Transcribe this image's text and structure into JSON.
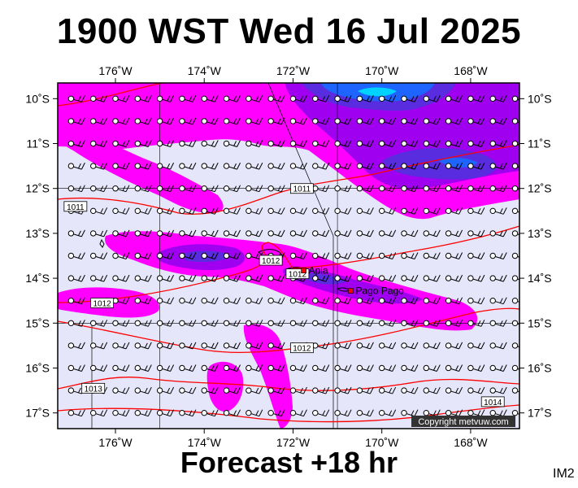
{
  "header": {
    "title": "1900 WST Wed 16 Jul 2025"
  },
  "footer": {
    "forecast": "Forecast +18 hr",
    "corner_id": "IM2"
  },
  "copyright": "Copyright metvuw.com",
  "map": {
    "lon_range": [
      -177.3,
      -166.9
    ],
    "lat_range": [
      -17.35,
      -9.65
    ],
    "lon_ticks": [
      {
        "lon": -176,
        "label": "176˚W"
      },
      {
        "lon": -174,
        "label": "174˚W"
      },
      {
        "lon": -172,
        "label": "172˚W"
      },
      {
        "lon": -170,
        "label": "170˚W"
      },
      {
        "lon": -168,
        "label": "168˚W"
      }
    ],
    "lat_ticks": [
      {
        "lat": -10,
        "label": "10˚S"
      },
      {
        "lat": -11,
        "label": "11˚S"
      },
      {
        "lat": -12,
        "label": "12˚S"
      },
      {
        "lat": -13,
        "label": "13˚S"
      },
      {
        "lat": -14,
        "label": "14˚S"
      },
      {
        "lat": -15,
        "label": "15˚S"
      },
      {
        "lat": -16,
        "label": "16˚S"
      },
      {
        "lat": -17,
        "label": "17˚S"
      }
    ],
    "cities": [
      {
        "name": "Apia",
        "lon": -171.76,
        "lat": -13.83
      },
      {
        "name": "Pago Pago",
        "lon": -170.7,
        "lat": -14.28
      }
    ],
    "isobars": [
      {
        "label": "1011",
        "lon": -171.8,
        "lat": -12.0
      },
      {
        "label": "1011",
        "lon": -176.9,
        "lat": -12.4
      },
      {
        "label": "1012",
        "lon": -172.5,
        "lat": -13.6
      },
      {
        "label": "1012",
        "lon": -171.9,
        "lat": -13.9
      },
      {
        "label": "1012",
        "lon": -176.3,
        "lat": -14.55
      },
      {
        "label": "1012",
        "lon": -171.8,
        "lat": -15.55
      },
      {
        "label": "1013",
        "lon": -176.5,
        "lat": -16.45
      },
      {
        "label": "1014",
        "lon": -167.5,
        "lat": -16.75
      }
    ],
    "colors": {
      "land_bg": "#e6e6fa",
      "rain_light": "#ff00ff",
      "rain_medium": "#a000f0",
      "rain_heavy": "#5a2ce0",
      "rain_very_heavy": "#1e64ff",
      "rain_extreme": "#00d2ff",
      "isobar": "#ff0000"
    }
  }
}
